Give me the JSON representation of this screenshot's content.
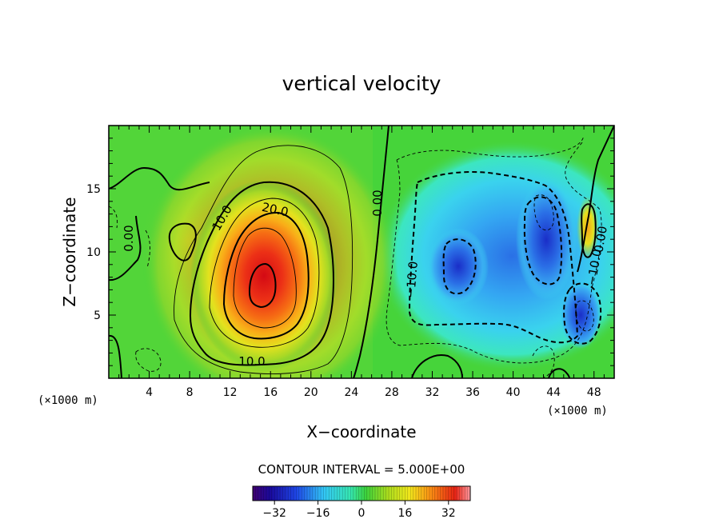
{
  "chart_data": {
    "type": "heatmap",
    "title": "vertical velocity",
    "xlabel": "X−coordinate",
    "ylabel": "Z−coordinate",
    "x_unit": "(×1000 m)",
    "x_unit_right": "(×1000 m)",
    "xlim": [
      0,
      50
    ],
    "ylim": [
      0,
      20
    ],
    "x_ticks": [
      "4",
      "8",
      "12",
      "16",
      "20",
      "24",
      "28",
      "32",
      "36",
      "40",
      "44",
      "48"
    ],
    "x_tick_values": [
      4,
      8,
      12,
      16,
      20,
      24,
      28,
      32,
      36,
      40,
      44,
      48
    ],
    "y_ticks": [
      "5",
      "10",
      "15"
    ],
    "y_tick_values": [
      5,
      10,
      15
    ],
    "contour_interval_text": "CONTOUR INTERVAL = 5.000E+00",
    "contour_interval": 5.0,
    "colorbar": {
      "range": [
        -40,
        40
      ],
      "ticks": [
        "−32",
        "−16",
        "0",
        "16",
        "32"
      ],
      "tick_values": [
        -32,
        -16,
        0,
        16,
        32
      ]
    },
    "contour_labels": [
      {
        "text": "10.0",
        "x": 10.8,
        "z": 13.3
      },
      {
        "text": "20.0",
        "x": 16.0,
        "z": 13.2
      },
      {
        "text": "10.0",
        "x": 14.2,
        "z": 1.3
      },
      {
        "text": "0.00",
        "x": 26.3,
        "z": 13.8
      },
      {
        "text": "0.00",
        "x": 1.9,
        "z": 11.0
      },
      {
        "text": "−10.0",
        "x": 29.6,
        "z": 8.2
      },
      {
        "text": "−10.0",
        "x": 47.2,
        "z": 10.3
      },
      {
        "text": "0.00",
        "x": 48.0,
        "z": 11.0
      }
    ],
    "features": [
      {
        "kind": "updraft",
        "x": 15.3,
        "z": 7.5,
        "max_value": 36
      },
      {
        "kind": "downdraft",
        "x": 33.8,
        "z": 9.2,
        "min_value": -20
      },
      {
        "kind": "downdraft",
        "x": 43.2,
        "z": 9.3,
        "min_value": -24
      },
      {
        "kind": "downdraft",
        "x": 46.0,
        "z": 4.4,
        "min_value": -28
      },
      {
        "kind": "updraft",
        "x": 47.2,
        "z": 11.2,
        "max_value": 16
      }
    ]
  }
}
